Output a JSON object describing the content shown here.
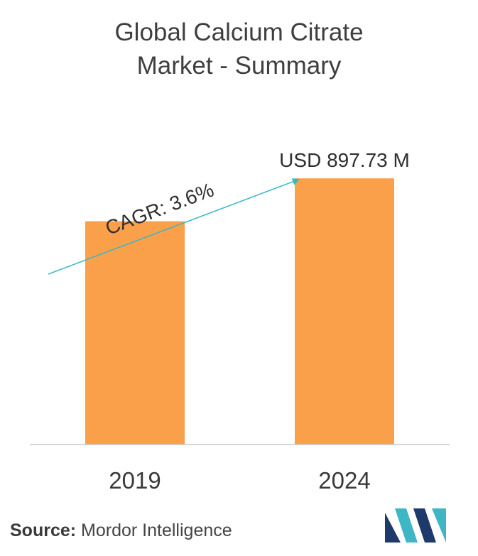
{
  "title_lines": [
    "Global Calcium Citrate",
    "Market - Summary"
  ],
  "source_label": "Source:",
  "source_text": "Mordor Intelligence",
  "colors": {
    "bar": "#FBA04A",
    "arrow": "#36B8C8",
    "axis": "#c8c8c8",
    "logo_dark": "#1D3A6B",
    "logo_teal": "#3FB6C6"
  },
  "chart_data": {
    "type": "bar",
    "categories": [
      "2019",
      "2024"
    ],
    "values": [
      753.0,
      897.73
    ],
    "data_labels": [
      "",
      "USD 897.73 M"
    ],
    "annotation": "CAGR: 3.6%",
    "title": "Global Calcium Citrate Market - Summary",
    "xlabel": "",
    "ylabel": "",
    "ylim": [
      0,
      1140
    ],
    "grid": false,
    "legend": "none"
  }
}
